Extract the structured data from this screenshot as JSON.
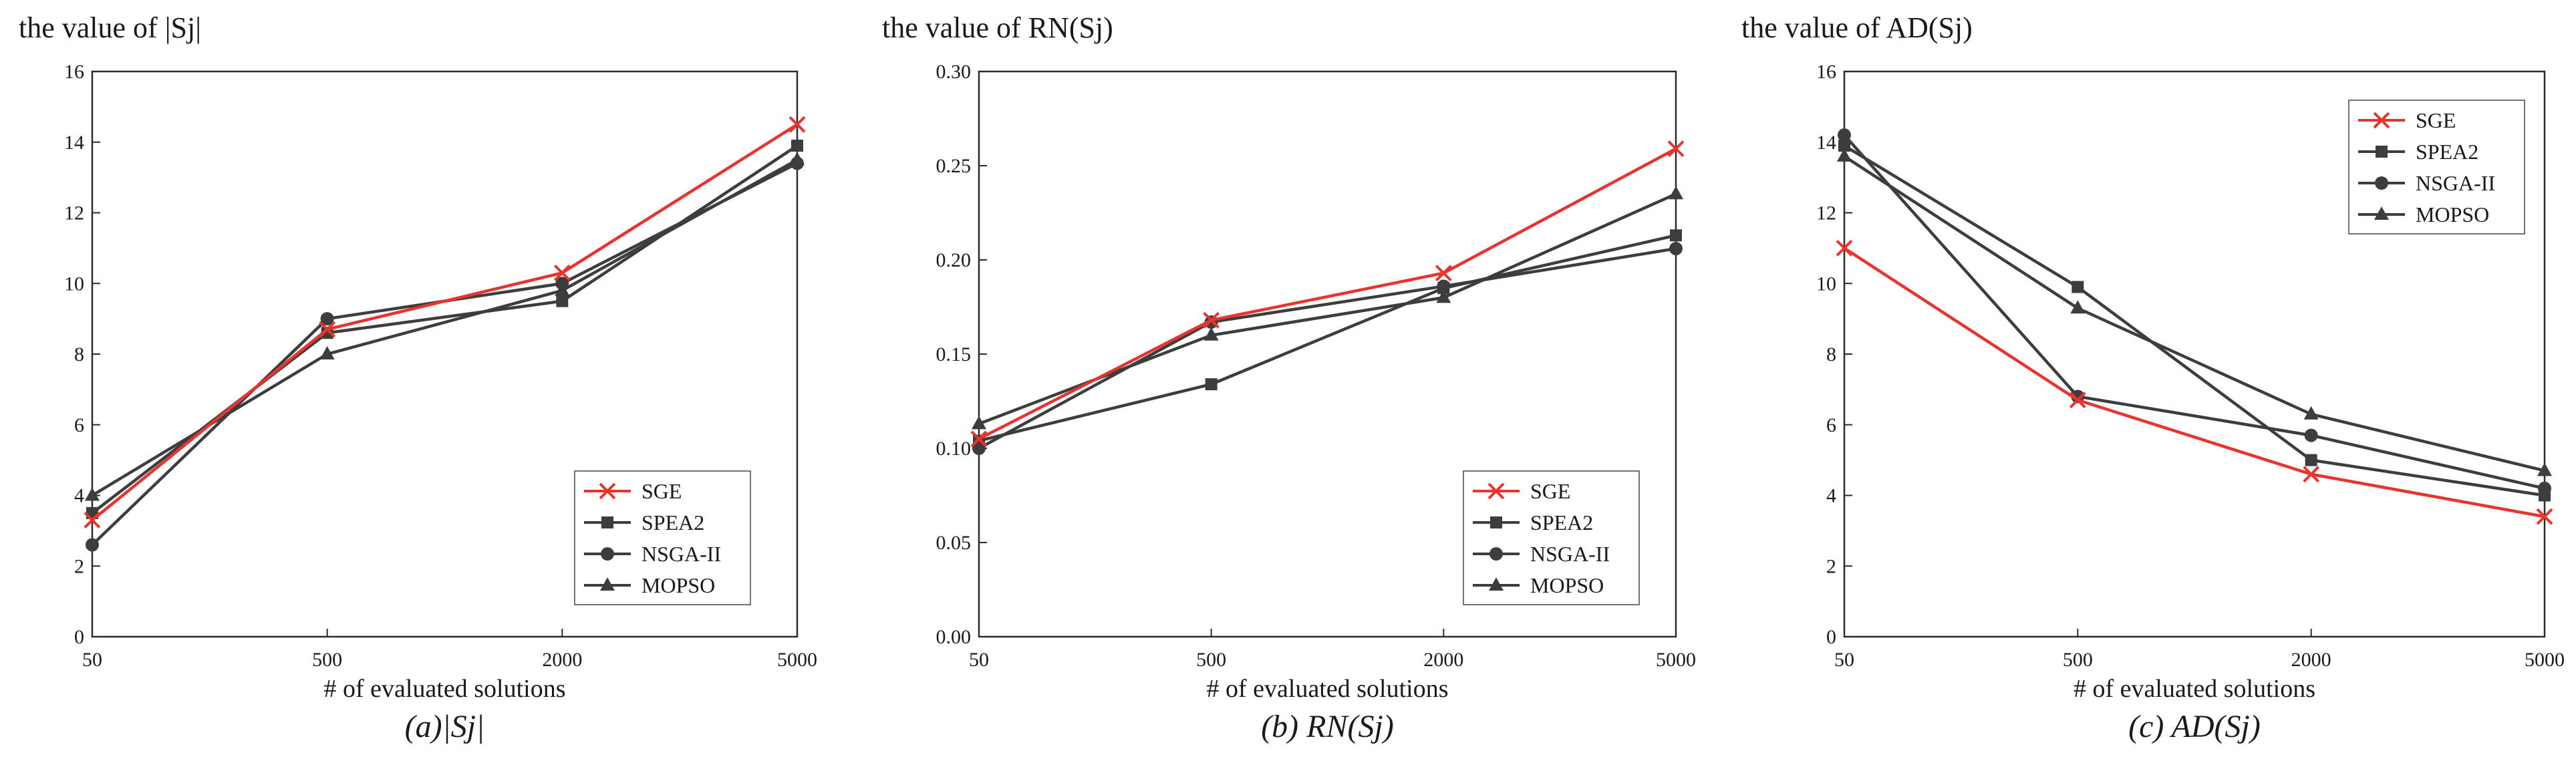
{
  "colors": {
    "sge": "#e8332f",
    "other": "#3d3d3d"
  },
  "chart_data": [
    {
      "type": "line",
      "title": "the value of |Sj|",
      "caption": "(a)|Sj|",
      "xlabel": "# of evaluated solutions",
      "ylabel": "",
      "categories": [
        "50",
        "500",
        "2000",
        "5000"
      ],
      "ylim": [
        0,
        16
      ],
      "yticks": [
        0,
        2,
        4,
        6,
        8,
        10,
        12,
        14,
        16
      ],
      "ytick_labels": [
        "0",
        "2",
        "4",
        "6",
        "8",
        "10",
        "12",
        "14",
        "16"
      ],
      "legend_position": "bottom-right",
      "series": [
        {
          "name": "SGE",
          "marker": "x",
          "values": [
            3.3,
            8.7,
            10.3,
            14.5
          ]
        },
        {
          "name": "SPEA2",
          "marker": "square",
          "values": [
            3.5,
            8.6,
            9.5,
            13.9
          ]
        },
        {
          "name": "NSGA-II",
          "marker": "circle",
          "values": [
            2.6,
            9.0,
            10.0,
            13.4
          ]
        },
        {
          "name": "MOPSO",
          "marker": "triangle",
          "values": [
            4.0,
            8.0,
            9.8,
            13.5
          ]
        }
      ]
    },
    {
      "type": "line",
      "title": "the value of RN(Sj)",
      "caption": "(b) RN(Sj)",
      "xlabel": "# of evaluated solutions",
      "ylabel": "",
      "categories": [
        "50",
        "500",
        "2000",
        "5000"
      ],
      "ylim": [
        0,
        0.3
      ],
      "yticks": [
        0,
        0.05,
        0.1,
        0.15,
        0.2,
        0.25,
        0.3
      ],
      "ytick_labels": [
        "0.00",
        "0.05",
        "0.10",
        "0.15",
        "0.20",
        "0.25",
        "0.30"
      ],
      "legend_position": "bottom-right",
      "series": [
        {
          "name": "SGE",
          "marker": "x",
          "values": [
            0.105,
            0.168,
            0.193,
            0.259
          ]
        },
        {
          "name": "SPEA2",
          "marker": "square",
          "values": [
            0.104,
            0.134,
            0.185,
            0.213
          ]
        },
        {
          "name": "NSGA-II",
          "marker": "circle",
          "values": [
            0.1,
            0.167,
            0.186,
            0.206
          ]
        },
        {
          "name": "MOPSO",
          "marker": "triangle",
          "values": [
            0.113,
            0.16,
            0.18,
            0.235
          ]
        }
      ]
    },
    {
      "type": "line",
      "title": "the value of AD(Sj)",
      "caption": "(c) AD(Sj)",
      "xlabel": "# of evaluated solutions",
      "ylabel": "",
      "categories": [
        "50",
        "500",
        "2000",
        "5000"
      ],
      "ylim": [
        0,
        16
      ],
      "yticks": [
        0,
        2,
        4,
        6,
        8,
        10,
        12,
        14,
        16
      ],
      "ytick_labels": [
        "0",
        "2",
        "4",
        "6",
        "8",
        "10",
        "12",
        "14",
        "16"
      ],
      "legend_position": "top-right",
      "series": [
        {
          "name": "SGE",
          "marker": "x",
          "values": [
            11.0,
            6.7,
            4.6,
            3.4
          ]
        },
        {
          "name": "SPEA2",
          "marker": "square",
          "values": [
            13.9,
            9.9,
            5.0,
            4.0
          ]
        },
        {
          "name": "NSGA-II",
          "marker": "circle",
          "values": [
            14.2,
            6.8,
            5.7,
            4.2
          ]
        },
        {
          "name": "MOPSO",
          "marker": "triangle",
          "values": [
            13.6,
            9.3,
            6.3,
            4.7
          ]
        }
      ]
    }
  ]
}
